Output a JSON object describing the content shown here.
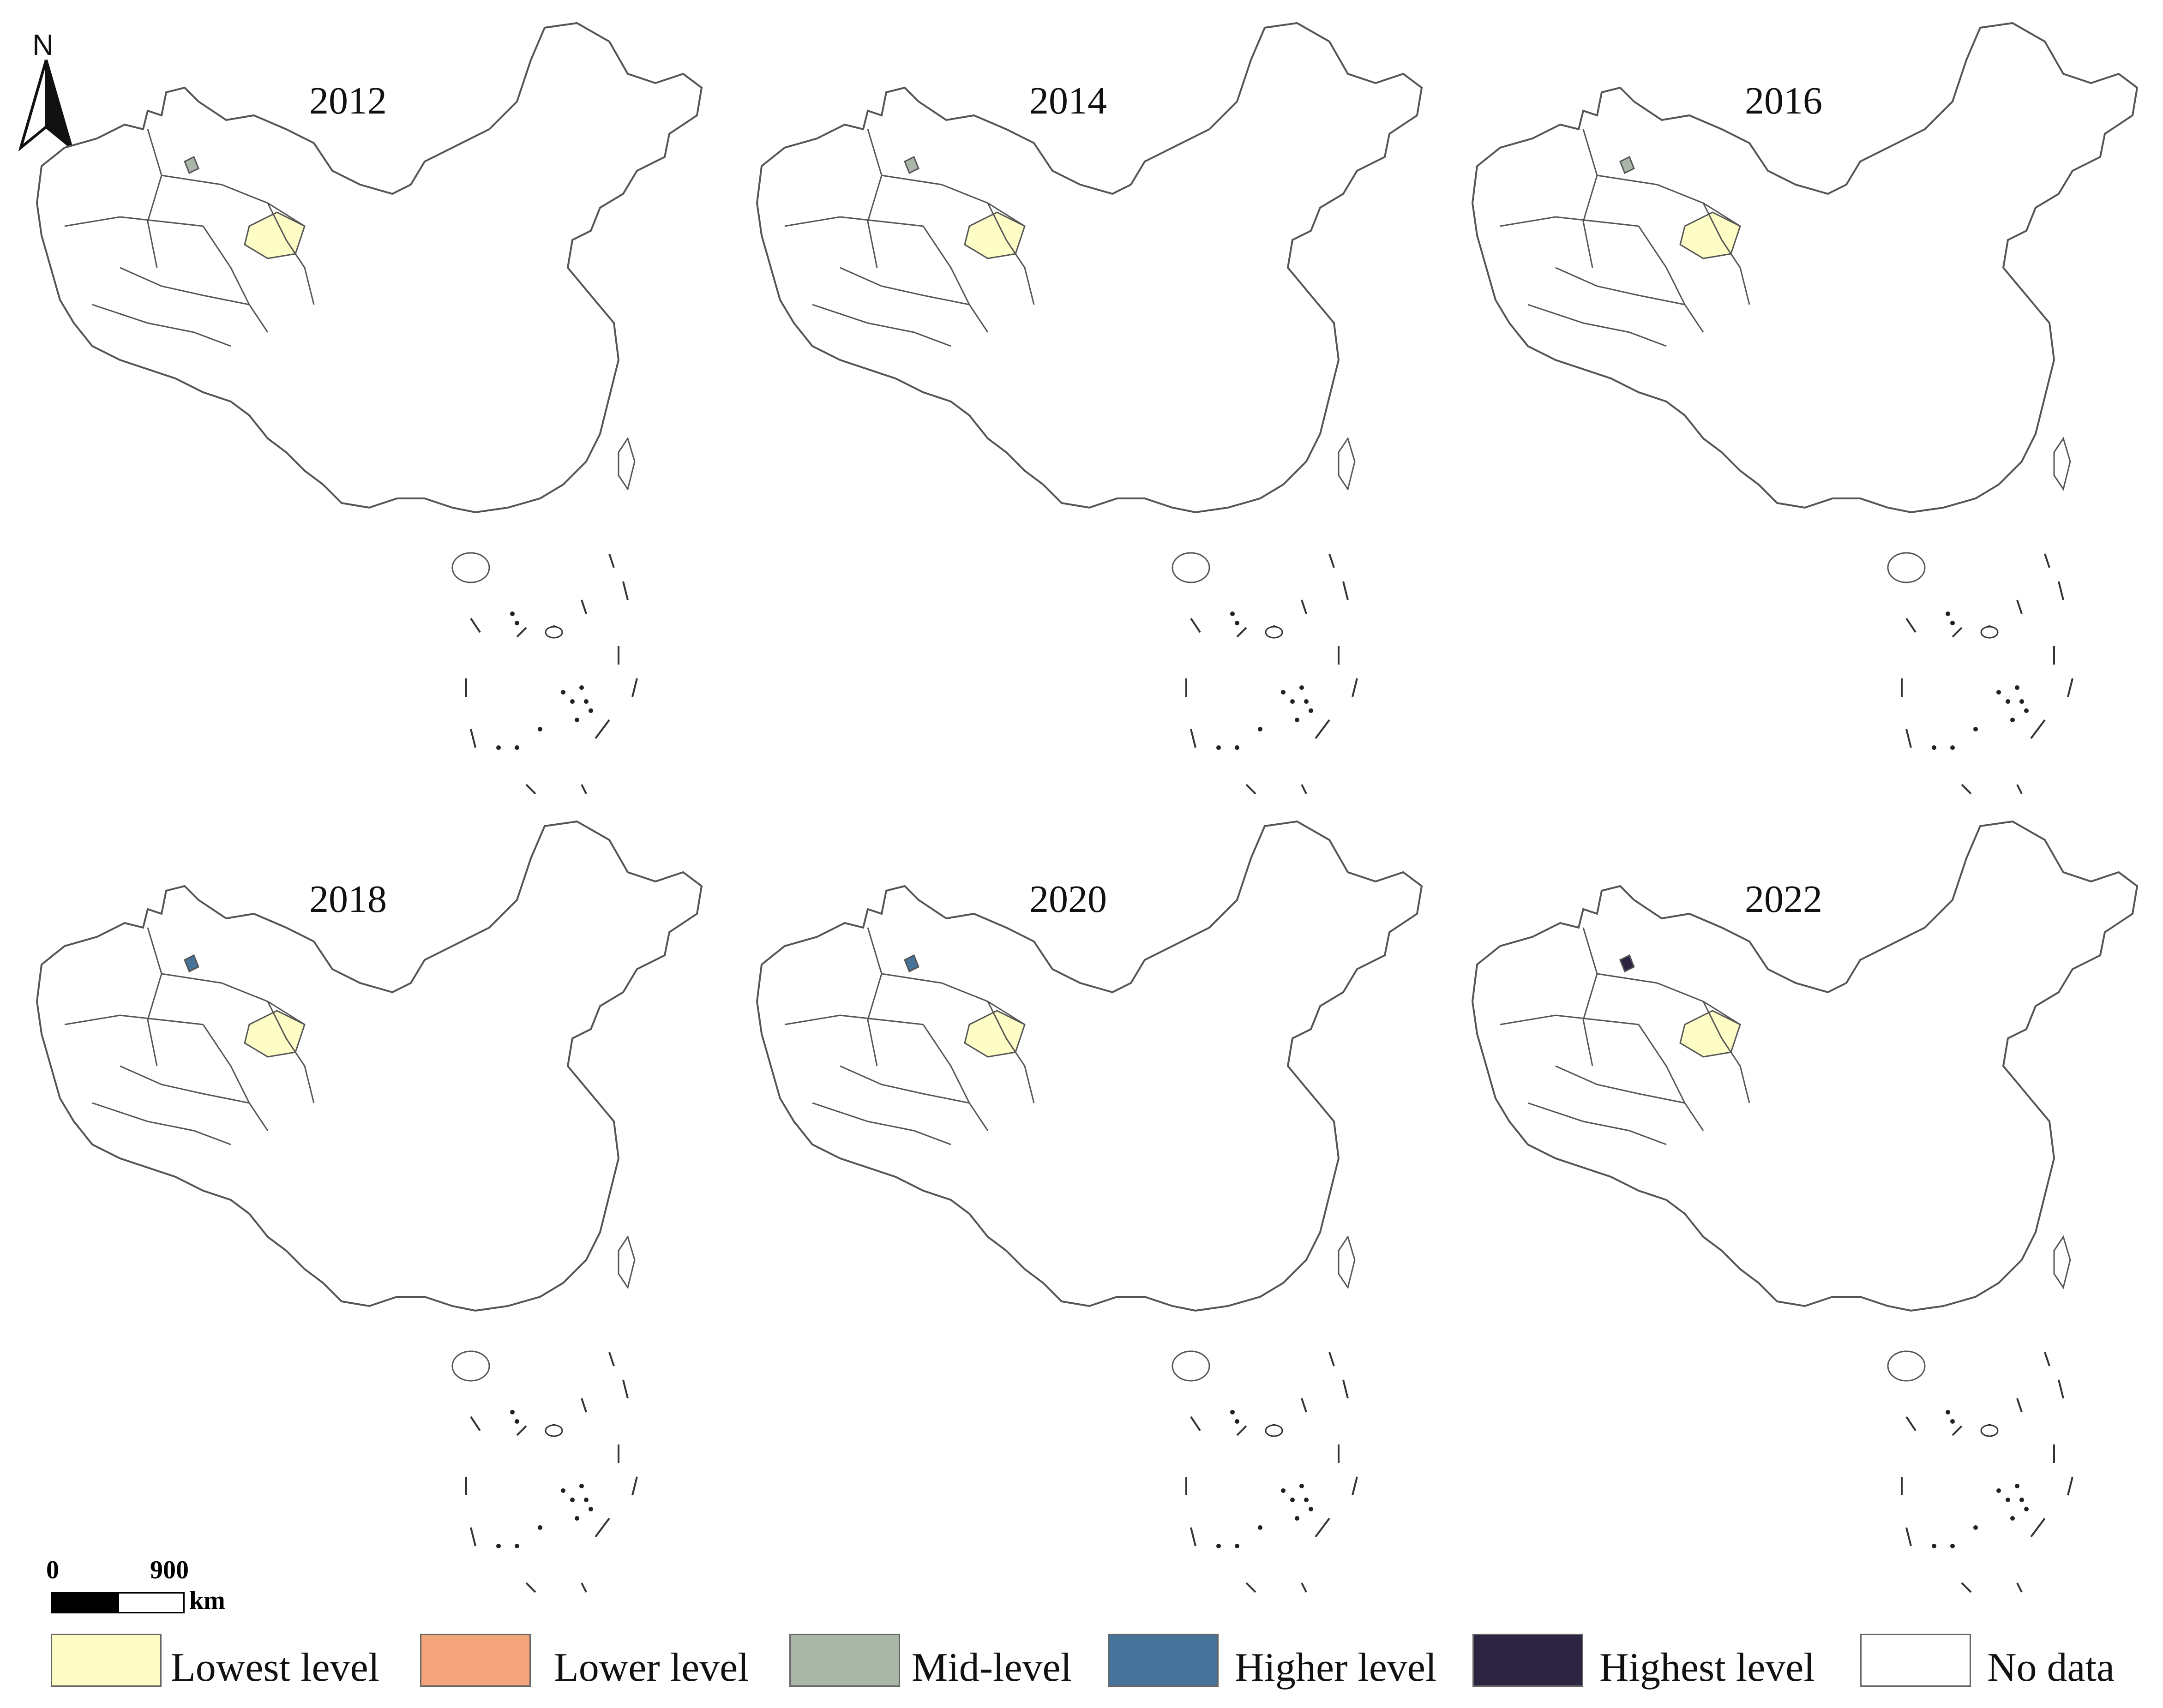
{
  "panels": [
    {
      "year": "2012"
    },
    {
      "year": "2014"
    },
    {
      "year": "2016"
    },
    {
      "year": "2018"
    },
    {
      "year": "2020"
    },
    {
      "year": "2022"
    }
  ],
  "north_label": "N",
  "scale": {
    "start": "0",
    "end": "900",
    "unit": "km"
  },
  "legend": [
    {
      "label": "Lowest level",
      "color": "#fefdc6"
    },
    {
      "label": "Lower level",
      "color": "#f4a57c"
    },
    {
      "label": "Mid-level",
      "color": "#a9b6a8"
    },
    {
      "label": "Higher level",
      "color": "#47729a"
    },
    {
      "label": "Highest level",
      "color": "#2c2441"
    },
    {
      "label": "No data",
      "color": "#ffffff"
    }
  ],
  "colors": {
    "outline": "#555555"
  }
}
